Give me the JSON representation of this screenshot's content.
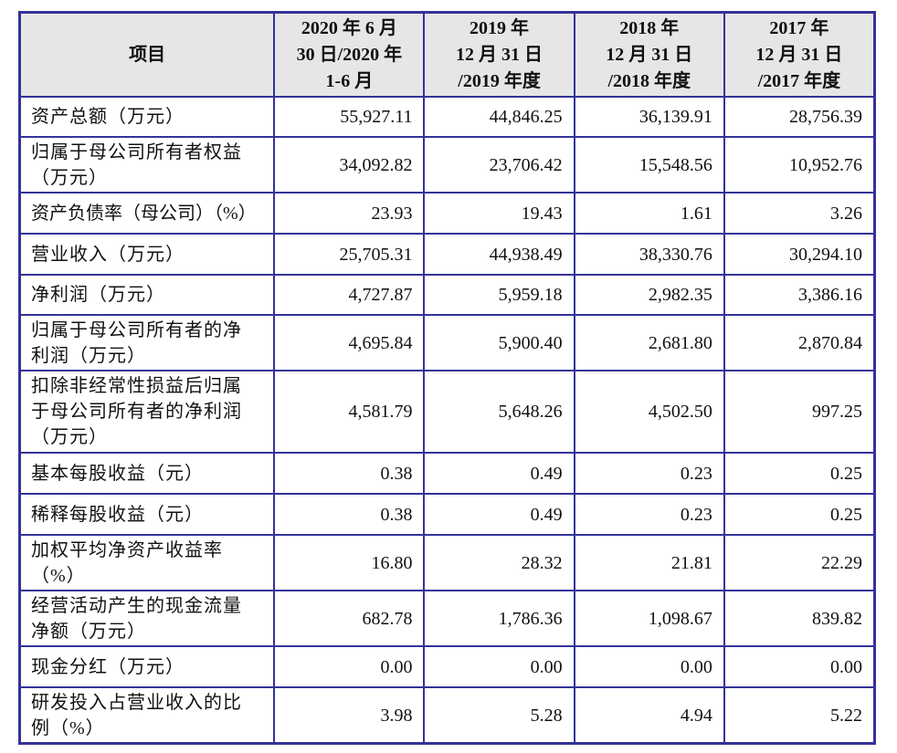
{
  "table": {
    "header": {
      "item": "项目",
      "columns": [
        [
          "2020 年 6 月",
          "30 日/2020 年",
          "1-6 月"
        ],
        [
          "2019 年",
          "12 月 31 日",
          "/2019 年度"
        ],
        [
          "2018 年",
          "12 月 31 日",
          "/2018 年度"
        ],
        [
          "2017 年",
          "12 月 31 日",
          "/2017 年度"
        ]
      ]
    },
    "rows": [
      {
        "label": [
          "资产总额（万元）"
        ],
        "values": [
          "55,927.11",
          "44,846.25",
          "36,139.91",
          "28,756.39"
        ]
      },
      {
        "label": [
          "归属于母公司所有者权益",
          "（万元）"
        ],
        "values": [
          "34,092.82",
          "23,706.42",
          "15,548.56",
          "10,952.76"
        ]
      },
      {
        "label": [
          "资产负债率（母公司）（%）"
        ],
        "values": [
          "23.93",
          "19.43",
          "1.61",
          "3.26"
        ]
      },
      {
        "label": [
          "营业收入（万元）"
        ],
        "values": [
          "25,705.31",
          "44,938.49",
          "38,330.76",
          "30,294.10"
        ]
      },
      {
        "label": [
          "净利润（万元）"
        ],
        "values": [
          "4,727.87",
          "5,959.18",
          "2,982.35",
          "3,386.16"
        ]
      },
      {
        "label": [
          "归属于母公司所有者的净",
          "利润（万元）"
        ],
        "values": [
          "4,695.84",
          "5,900.40",
          "2,681.80",
          "2,870.84"
        ]
      },
      {
        "label": [
          "扣除非经常性损益后归属",
          "于母公司所有者的净利润",
          "（万元）"
        ],
        "values": [
          "4,581.79",
          "5,648.26",
          "4,502.50",
          "997.25"
        ]
      },
      {
        "label": [
          "基本每股收益（元）"
        ],
        "values": [
          "0.38",
          "0.49",
          "0.23",
          "0.25"
        ]
      },
      {
        "label": [
          "稀释每股收益（元）"
        ],
        "values": [
          "0.38",
          "0.49",
          "0.23",
          "0.25"
        ]
      },
      {
        "label": [
          "加权平均净资产收益率",
          "（%）"
        ],
        "values": [
          "16.80",
          "28.32",
          "21.81",
          "22.29"
        ]
      },
      {
        "label": [
          "经营活动产生的现金流量",
          "净额（万元）"
        ],
        "values": [
          "682.78",
          "1,786.36",
          "1,098.67",
          "839.82"
        ]
      },
      {
        "label": [
          "现金分红（万元）"
        ],
        "values": [
          "0.00",
          "0.00",
          "0.00",
          "0.00"
        ]
      },
      {
        "label": [
          "研发投入占营业收入的比",
          "例（%）"
        ],
        "values": [
          "3.98",
          "5.28",
          "4.94",
          "5.22"
        ]
      }
    ]
  },
  "colors": {
    "border": "#333399",
    "header_bg": "#e6e6e6",
    "text": "#111111"
  }
}
